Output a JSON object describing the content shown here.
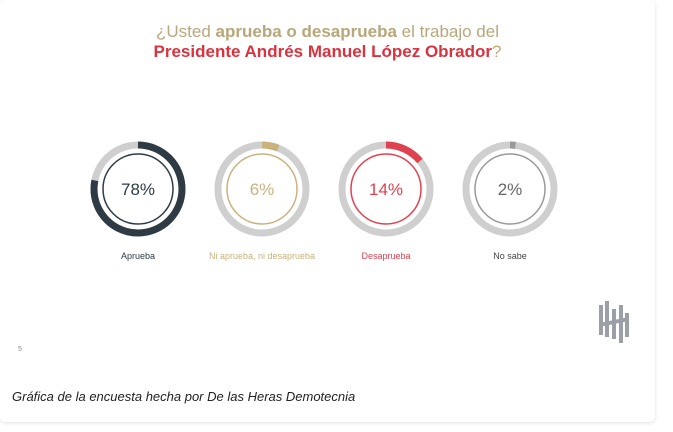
{
  "title": {
    "line1_pre": "¿Usted ",
    "line1_bold": "aprueba o desaprueba",
    "line1_post": " el trabajo del",
    "line2_bold": "Presidente Andrés Manuel López Obrador",
    "line2_post": "?"
  },
  "chart_data": {
    "type": "pie",
    "categories": [
      "Aprueba",
      "Ni aprueba, ni desaprueba",
      "Desaprueba",
      "No sabe"
    ],
    "values": [
      78,
      6,
      14,
      2
    ],
    "value_labels": [
      "78%",
      "6%",
      "14%",
      "2%"
    ],
    "colors": [
      "#2e3b45",
      "#c9b27e",
      "#e0414f",
      "#9a9a9a"
    ]
  },
  "page_number": "5",
  "caption": "Gráfica de la encuesta hecha por De las Heras Demotecnia"
}
